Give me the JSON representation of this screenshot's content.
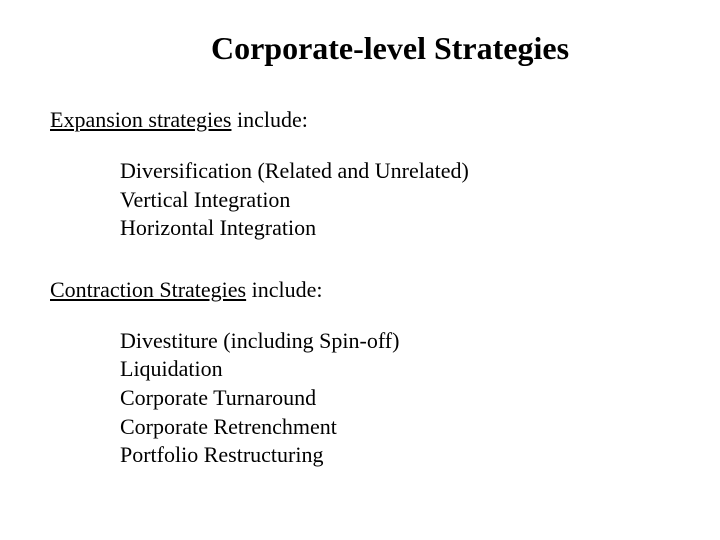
{
  "title": "Corporate-level Strategies",
  "sections": [
    {
      "header_underlined": "Expansion strategies",
      "header_rest": " include:",
      "items": [
        "Diversification (Related and Unrelated)",
        "Vertical Integration",
        "Horizontal Integration"
      ]
    },
    {
      "header_underlined": "Contraction Strategies",
      "header_rest": " include:",
      "items": [
        "Divestiture (including Spin-off)",
        "Liquidation",
        "Corporate Turnaround",
        "Corporate Retrenchment",
        "Portfolio Restructuring"
      ]
    }
  ],
  "style": {
    "background_color": "#ffffff",
    "text_color": "#000000",
    "font_family": "Times New Roman",
    "title_fontsize": 32,
    "body_fontsize": 22
  }
}
